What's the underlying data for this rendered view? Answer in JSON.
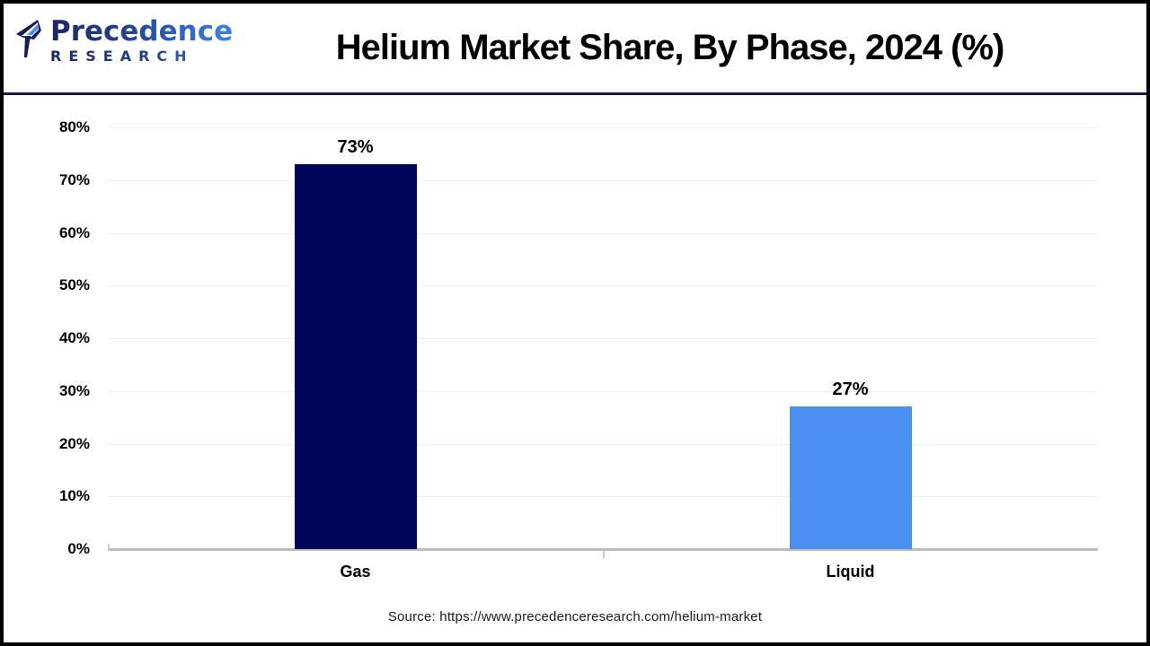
{
  "header": {
    "logo": {
      "line1": "Precedence",
      "line2": "RESEARCH"
    },
    "title": "Helium Market Share, By Phase, 2024 (%)"
  },
  "chart_data": {
    "type": "bar",
    "title": "Helium Market Share, By Phase, 2024 (%)",
    "categories": [
      "Gas",
      "Liquid"
    ],
    "values": [
      73,
      27
    ],
    "value_labels": [
      "73%",
      "27%"
    ],
    "unit": "%",
    "xlabel": "",
    "ylabel": "",
    "ylim": [
      0,
      80
    ],
    "ytick_step": 10,
    "ytick_labels": [
      "0%",
      "10%",
      "20%",
      "30%",
      "40%",
      "50%",
      "60%",
      "70%",
      "80%"
    ],
    "grid": true,
    "legend_position": "none",
    "bar_colors": [
      "#01065A",
      "#4A90F0"
    ]
  },
  "footer": {
    "source": "Source: https://www.precedenceresearch.com/helium-market"
  },
  "colors": {
    "bar_gas": "#01065A",
    "bar_liquid": "#4A90F0",
    "header_rule": "#17174A",
    "axis_line": "#BDBDBD",
    "gridline": "#EFEFEF",
    "frame_border": "#000000",
    "logo_gradient_start": "#1C2663",
    "logo_gradient_end": "#3B82E8"
  }
}
